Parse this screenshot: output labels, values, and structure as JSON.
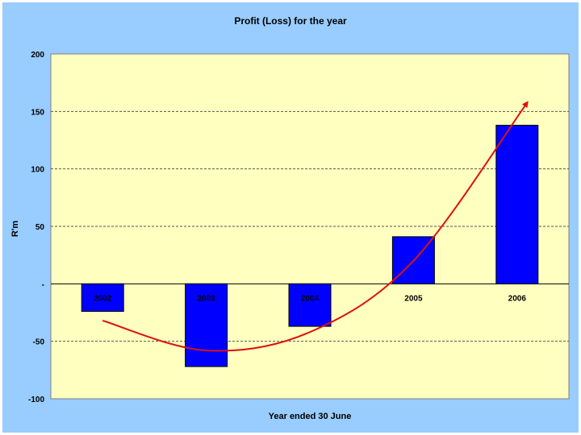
{
  "chart_data": {
    "type": "bar",
    "title": "Profit (Loss) for the year",
    "xlabel": "Year ended 30 June",
    "ylabel": "R'm",
    "categories": [
      "2002",
      "2003",
      "2004",
      "2005",
      "2006"
    ],
    "values": [
      -24,
      -72,
      -37,
      41,
      138
    ],
    "ylim": [
      -100,
      200
    ],
    "yticks": [
      {
        "value": 200,
        "label": "200"
      },
      {
        "value": 150,
        "label": "150"
      },
      {
        "value": 100,
        "label": "100"
      },
      {
        "value": 50,
        "label": "50"
      },
      {
        "value": 0,
        "label": "-"
      },
      {
        "value": -50,
        "label": "-50"
      },
      {
        "value": -100,
        "label": "-100"
      }
    ],
    "grid": true,
    "colors": {
      "background": "#99ccff",
      "plot_area": "#ffffc0",
      "bars": "#0000ff",
      "trend_arrow": "#dd1111"
    },
    "trend_arrow": {
      "description_shown": false,
      "x": [
        2002,
        2003,
        2004,
        2005,
        2006.1
      ],
      "y": [
        -32,
        -58,
        -42,
        20,
        158
      ]
    }
  }
}
